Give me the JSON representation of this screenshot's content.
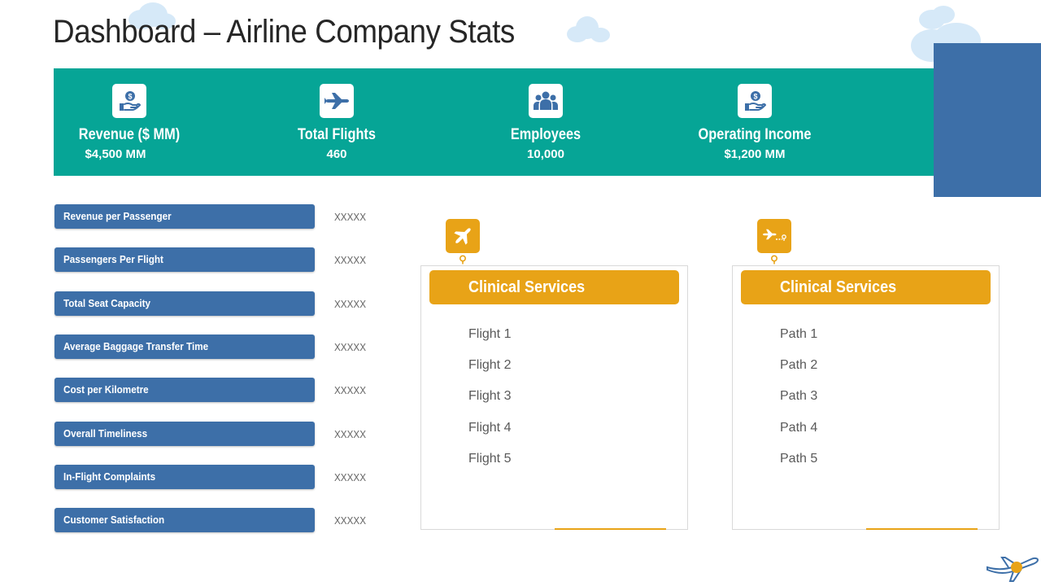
{
  "title": "Dashboard – Airline Company Stats",
  "colors": {
    "teal": "#06a596",
    "blue": "#3d6fa8",
    "amber": "#e8a317",
    "cloud": "#d6e9f8"
  },
  "kpis": [
    {
      "icon": "money-hand-icon",
      "label": "Revenue ($ MM)",
      "value": "$4,500 MM"
    },
    {
      "icon": "airplane-icon",
      "label": "Total Flights",
      "value": "460"
    },
    {
      "icon": "people-group-icon",
      "label": "Employees",
      "value": "10,000"
    },
    {
      "icon": "money-hand-icon",
      "label": "Operating Income",
      "value": "$1,200 MM"
    }
  ],
  "metrics": [
    {
      "label": "Revenue per Passenger",
      "value": "XXXXX"
    },
    {
      "label": "Passengers Per Flight",
      "value": "XXXXX"
    },
    {
      "label": "Total Seat Capacity",
      "value": "XXXXX"
    },
    {
      "label": "Average Baggage Transfer Time",
      "value": "XXXXX"
    },
    {
      "label": "Cost per Kilometre",
      "value": "XXXXX"
    },
    {
      "label": "Overall Timeliness",
      "value": "XXXXX"
    },
    {
      "label": "In-Flight Complaints",
      "value": "XXXXX"
    },
    {
      "label": "Customer Satisfaction",
      "value": "XXXXX"
    }
  ],
  "cards": [
    {
      "icon": "airplane-icon",
      "title": "Clinical Services",
      "items": [
        "Flight 1",
        "Flight 2",
        "Flight 3",
        "Flight 4",
        "Flight 5"
      ]
    },
    {
      "icon": "flight-path-icon",
      "title": "Clinical Services",
      "items": [
        "Path 1",
        "Path 2",
        "Path 3",
        "Path 4",
        "Path 5"
      ]
    }
  ]
}
